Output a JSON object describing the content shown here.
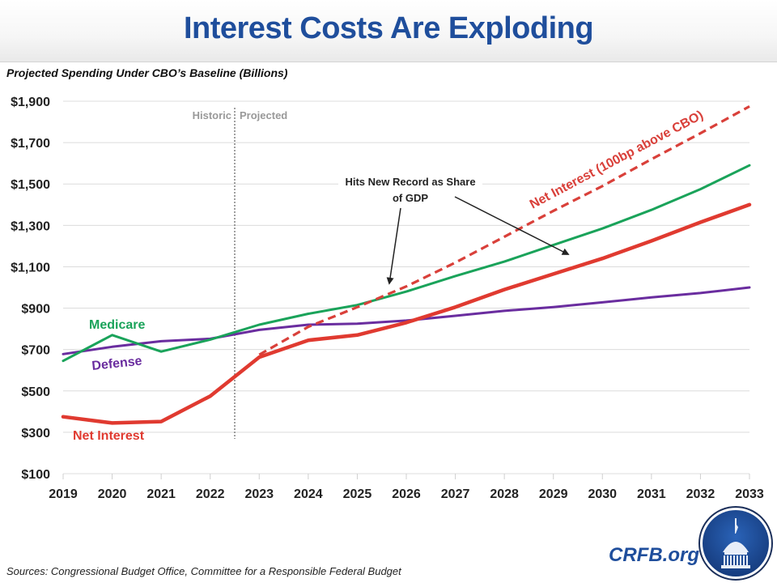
{
  "header": {
    "title": "Interest Costs Are Exploding",
    "subtitle": "Projected Spending Under CBO’s Baseline (Billions)"
  },
  "footer": {
    "sources": "Sources: Congressional Budget Office, Committee for a Responsible Federal Budget",
    "brand": "CRFB.org",
    "logo_icon": "capitol-dome-icon"
  },
  "chart_data": {
    "type": "line",
    "title": "Interest Costs Are Exploding",
    "subtitle": "Projected Spending Under CBO’s Baseline (Billions)",
    "xlabel": "",
    "ylabel": "",
    "x": [
      2019,
      2020,
      2021,
      2022,
      2023,
      2024,
      2025,
      2026,
      2027,
      2028,
      2029,
      2030,
      2031,
      2032,
      2033
    ],
    "ylim": [
      100,
      1900
    ],
    "yticks": [
      100,
      300,
      500,
      700,
      900,
      1100,
      1300,
      1500,
      1700,
      1900
    ],
    "ytick_labels": [
      "$100",
      "$300",
      "$500",
      "$700",
      "$900",
      "$1,100",
      "$1,300",
      "$1,500",
      "$1,700",
      "$1,900"
    ],
    "xtick_labels": [
      "2019",
      "2020",
      "2021",
      "2022",
      "2023",
      "2024",
      "2025",
      "2026",
      "2027",
      "2028",
      "2029",
      "2030",
      "2031",
      "2032",
      "2033"
    ],
    "grid": true,
    "legend": "none (inline labels)",
    "series": [
      {
        "name": "Medicare",
        "color": "#1aa35a",
        "style": "solid",
        "values": [
          645,
          770,
          690,
          748,
          820,
          873,
          915,
          980,
          1055,
          1125,
          1205,
          1285,
          1375,
          1475,
          1590
        ]
      },
      {
        "name": "Defense",
        "color": "#6a2d9f",
        "style": "solid",
        "values": [
          678,
          713,
          740,
          752,
          795,
          820,
          825,
          840,
          863,
          887,
          905,
          928,
          952,
          973,
          1000
        ]
      },
      {
        "name": "Net Interest",
        "color": "#e03a30",
        "style": "solid-thick",
        "values": [
          375,
          345,
          352,
          475,
          663,
          745,
          770,
          830,
          905,
          990,
          1065,
          1140,
          1225,
          1315,
          1400
        ]
      },
      {
        "name": "Net Interest (100bp above CBO)",
        "color": "#d9403a",
        "style": "dashed",
        "values": [
          null,
          null,
          null,
          null,
          675,
          810,
          905,
          1005,
          1120,
          1245,
          1370,
          1490,
          1620,
          1745,
          1875
        ]
      }
    ],
    "divider": {
      "position_year": 2022.5,
      "left_label": "Historic",
      "right_label": "Projected"
    },
    "annotations": [
      {
        "text_line1": "Hits New Record as Share",
        "text_line2": "of GDP",
        "targets": [
          "Net Interest (100bp above CBO) ~2025.6",
          "Net Interest ~2029.3"
        ]
      }
    ]
  }
}
